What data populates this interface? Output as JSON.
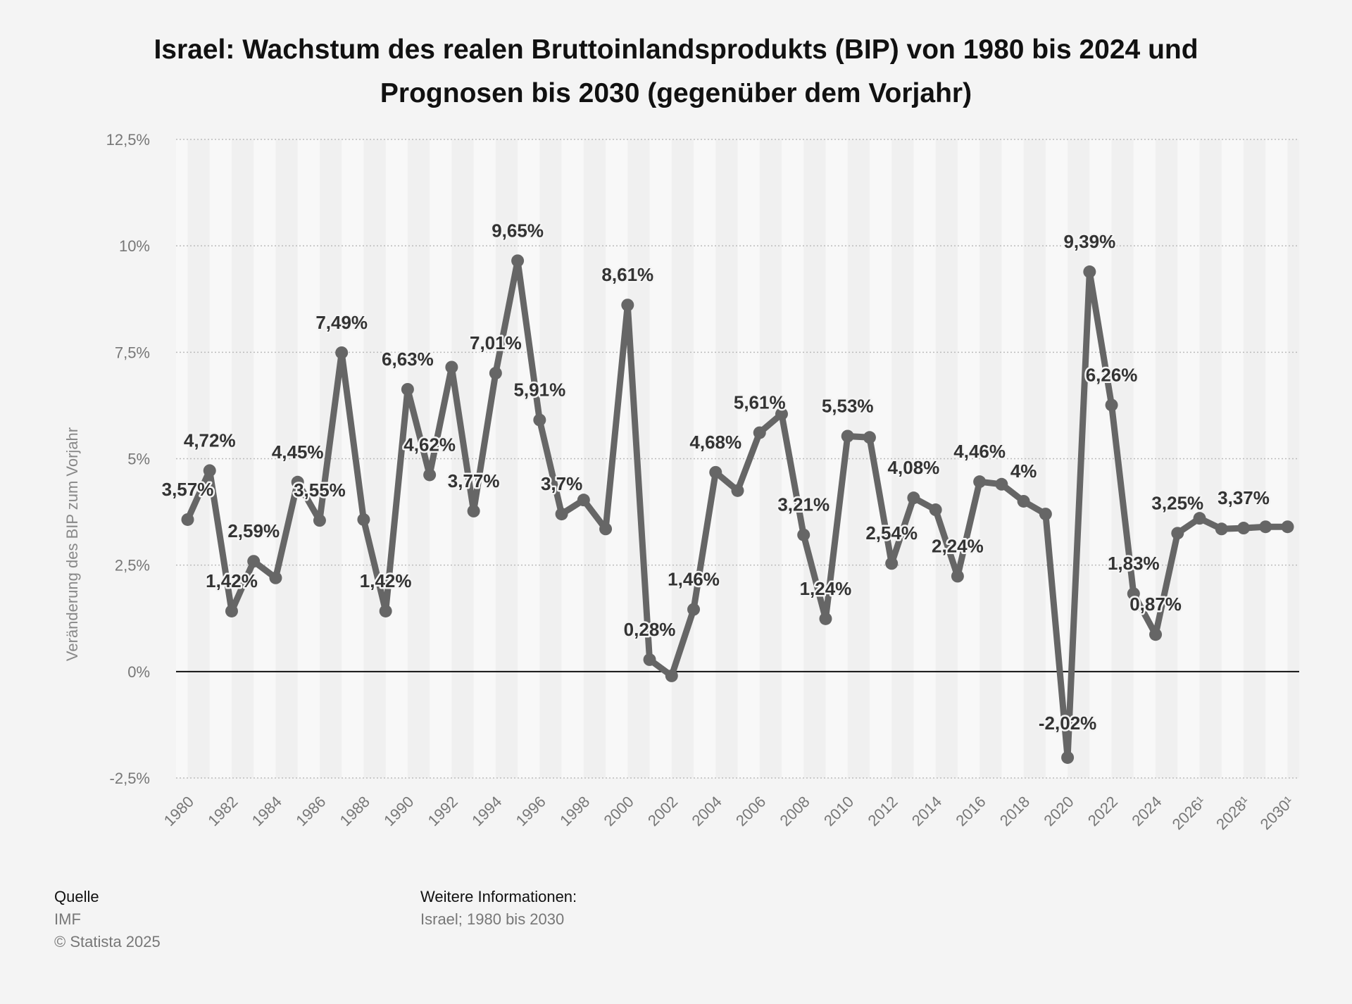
{
  "chart_data": {
    "type": "line",
    "title_line1": "Israel: Wachstum des realen Bruttoinlandsprodukts (BIP) von 1980 bis 2024 und",
    "title_line2": "Prognosen bis 2030 (gegenüber dem Vorjahr)",
    "ylabel": "Veränderung des BIP zum Vorjahr",
    "ylim": [
      -2.5,
      12.5
    ],
    "y_ticks": [
      {
        "value": -2.5,
        "label": "-2,5%"
      },
      {
        "value": 0,
        "label": "0%"
      },
      {
        "value": 2.5,
        "label": "2,5%"
      },
      {
        "value": 5,
        "label": "5%"
      },
      {
        "value": 7.5,
        "label": "7,5%"
      },
      {
        "value": 10,
        "label": "10%"
      },
      {
        "value": 12.5,
        "label": "12,5%"
      }
    ],
    "x_ticks": [
      "1980",
      "1982",
      "1984",
      "1986",
      "1988",
      "1990",
      "1992",
      "1994",
      "1996",
      "1998",
      "2000",
      "2002",
      "2004",
      "2006",
      "2008",
      "2010",
      "2012",
      "2014",
      "2016",
      "2018",
      "2020",
      "2022",
      "2024",
      "2026¹",
      "2028¹",
      "2030¹"
    ],
    "grid": "horizontal-dotted",
    "series": [
      {
        "color": "#666666",
        "x": [
          1980,
          1981,
          1982,
          1983,
          1984,
          1985,
          1986,
          1987,
          1988,
          1989,
          1990,
          1991,
          1992,
          1993,
          1994,
          1995,
          1996,
          1997,
          1998,
          1999,
          2000,
          2001,
          2002,
          2003,
          2004,
          2005,
          2006,
          2007,
          2008,
          2009,
          2010,
          2011,
          2012,
          2013,
          2014,
          2015,
          2016,
          2017,
          2018,
          2019,
          2020,
          2021,
          2022,
          2023,
          2024,
          2025,
          2026,
          2027,
          2028,
          2029,
          2030
        ],
        "values": [
          3.57,
          4.72,
          1.42,
          2.59,
          2.2,
          4.45,
          3.55,
          7.49,
          3.57,
          1.42,
          6.63,
          4.62,
          7.15,
          3.77,
          7.01,
          9.65,
          5.91,
          3.7,
          4.03,
          3.35,
          8.61,
          0.28,
          -0.1,
          1.46,
          4.68,
          4.25,
          5.61,
          6.05,
          3.21,
          1.24,
          5.53,
          5.5,
          2.54,
          4.08,
          3.8,
          2.24,
          4.46,
          4.4,
          4.0,
          3.7,
          -2.02,
          9.39,
          6.26,
          1.83,
          0.87,
          3.25,
          3.6,
          3.35,
          3.37,
          3.4,
          3.4
        ]
      }
    ],
    "data_labels": [
      {
        "year": 1980,
        "text": "3,57%"
      },
      {
        "year": 1981,
        "text": "4,72%"
      },
      {
        "year": 1982,
        "text": "1,42%"
      },
      {
        "year": 1983,
        "text": "2,59%"
      },
      {
        "year": 1985,
        "text": "4,45%"
      },
      {
        "year": 1986,
        "text": "3,55%"
      },
      {
        "year": 1987,
        "text": "7,49%"
      },
      {
        "year": 1989,
        "text": "1,42%"
      },
      {
        "year": 1990,
        "text": "6,63%"
      },
      {
        "year": 1991,
        "text": "4,62%"
      },
      {
        "year": 1993,
        "text": "3,77%"
      },
      {
        "year": 1994,
        "text": "7,01%"
      },
      {
        "year": 1995,
        "text": "9,65%"
      },
      {
        "year": 1996,
        "text": "5,91%"
      },
      {
        "year": 1997,
        "text": "3,7%"
      },
      {
        "year": 2000,
        "text": "8,61%"
      },
      {
        "year": 2001,
        "text": "0,28%"
      },
      {
        "year": 2003,
        "text": "1,46%"
      },
      {
        "year": 2004,
        "text": "4,68%"
      },
      {
        "year": 2006,
        "text": "5,61%"
      },
      {
        "year": 2008,
        "text": "3,21%"
      },
      {
        "year": 2009,
        "text": "1,24%"
      },
      {
        "year": 2010,
        "text": "5,53%"
      },
      {
        "year": 2012,
        "text": "2,54%"
      },
      {
        "year": 2013,
        "text": "4,08%"
      },
      {
        "year": 2015,
        "text": "2,24%"
      },
      {
        "year": 2016,
        "text": "4,46%"
      },
      {
        "year": 2018,
        "text": "4%"
      },
      {
        "year": 2020,
        "text": "-2,02%"
      },
      {
        "year": 2021,
        "text": "9,39%"
      },
      {
        "year": 2022,
        "text": "6,26%"
      },
      {
        "year": 2023,
        "text": "1,83%"
      },
      {
        "year": 2024,
        "text": "0,87%"
      },
      {
        "year": 2025,
        "text": "3,25%"
      },
      {
        "year": 2028,
        "text": "3,37%"
      }
    ]
  },
  "footer": {
    "source_heading": "Quelle",
    "source_name": "IMF",
    "copyright": "© Statista 2025",
    "info_heading": "Weitere Informationen:",
    "info_text": "Israel; 1980 bis 2030"
  }
}
